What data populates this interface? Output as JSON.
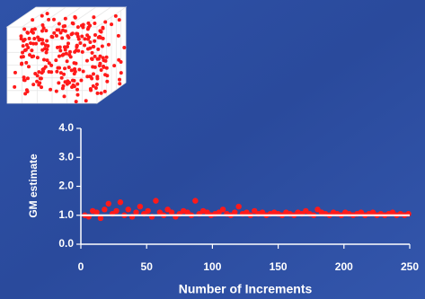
{
  "chart_data": {
    "type": "scatter",
    "xlabel": "Number of Increments",
    "ylabel": "GM estimate",
    "xlim": [
      0,
      250
    ],
    "ylim": [
      0,
      4
    ],
    "xticks": [
      0,
      50,
      100,
      150,
      200,
      250
    ],
    "yticks": [
      {
        "value": 0,
        "label": "0.0"
      },
      {
        "value": 1,
        "label": "1.0"
      },
      {
        "value": 2,
        "label": "2.0"
      },
      {
        "value": 3,
        "label": "3.0"
      },
      {
        "value": 4,
        "label": "4.0"
      }
    ],
    "color": "#ff1a1a",
    "reference_line": 1,
    "reference_color": "#ffffff",
    "x": [
      3,
      6,
      9,
      12,
      15,
      18,
      21,
      24,
      27,
      30,
      33,
      36,
      39,
      42,
      45,
      48,
      51,
      54,
      57,
      60,
      63,
      66,
      69,
      72,
      75,
      78,
      81,
      84,
      87,
      90,
      93,
      96,
      99,
      102,
      105,
      108,
      111,
      114,
      117,
      120,
      123,
      126,
      129,
      132,
      135,
      138,
      141,
      144,
      147,
      150,
      153,
      156,
      159,
      162,
      165,
      168,
      171,
      174,
      177,
      180,
      183,
      186,
      189,
      192,
      195,
      198,
      201,
      204,
      207,
      210,
      213,
      216,
      219,
      222,
      225,
      228,
      231,
      234,
      237,
      240,
      243,
      246,
      249
    ],
    "values": [
      1.0,
      0.95,
      1.15,
      1.1,
      0.9,
      1.2,
      1.4,
      1.05,
      1.15,
      1.45,
      1.0,
      1.2,
      0.95,
      1.1,
      1.3,
      1.05,
      1.15,
      0.95,
      1.5,
      1.1,
      1.0,
      1.2,
      1.1,
      0.95,
      1.05,
      1.15,
      1.1,
      1.0,
      1.5,
      1.05,
      1.15,
      1.1,
      1.0,
      1.05,
      1.1,
      1.2,
      1.05,
      1.0,
      1.1,
      1.3,
      1.05,
      1.1,
      1.0,
      1.15,
      1.05,
      1.1,
      1.0,
      1.05,
      1.1,
      1.05,
      1.0,
      1.1,
      1.05,
      1.0,
      1.1,
      1.05,
      1.15,
      1.05,
      1.0,
      1.2,
      1.1,
      1.05,
      1.0,
      1.1,
      1.05,
      1.0,
      1.1,
      1.05,
      1.0,
      1.05,
      1.1,
      1.0,
      1.05,
      1.1,
      1.0,
      1.05,
      1.0,
      1.05,
      1.1,
      1.0,
      1.05,
      1.0,
      1.05
    ]
  }
}
